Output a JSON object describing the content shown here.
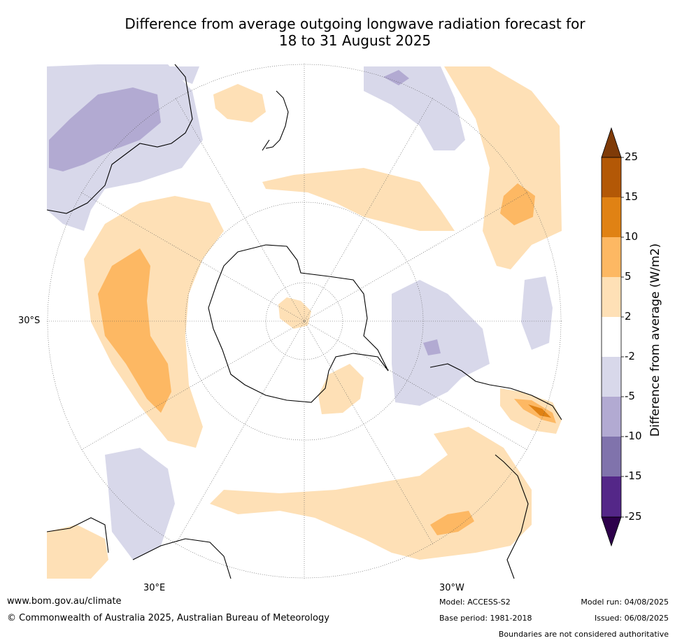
{
  "title": {
    "line1": "Difference from average outgoing longwave radiation forecast for",
    "line2": "18 to 31 August 2025"
  },
  "map": {
    "projection": "south-polar stereographic",
    "labels": {
      "lat_30s": "30°S",
      "lon_30e": "30°E",
      "lon_30w": "30°W"
    },
    "colors": {
      "lt_minus2_minus5": "#d8d8ea",
      "lt_minus5_minus10": "#b2aad2",
      "lt_minus10_minus15": "#8073ac",
      "lt_minus15_minus25": "#542788",
      "lt_minus25": "#2d004b",
      "gt_2_5": "#fee0b6",
      "gt_5_10": "#fdb863",
      "gt_10_15": "#e08214",
      "gt_15_25": "#b35806",
      "gt_25": "#7f3b08",
      "neutral": "#ffffff"
    }
  },
  "colorbar": {
    "title": "Difference from average (W/m2)",
    "ticks": [
      "25",
      "15",
      "10",
      "5",
      "2",
      "-2",
      "-5",
      "-10",
      "-15",
      "-25"
    ]
  },
  "footer": {
    "website": "www.bom.gov.au/climate",
    "copyright": "© Commonwealth of Australia 2025, Australian Bureau of Meteorology",
    "model": "Model: ACCESS-S2",
    "base_period": "Base period: 1981-2018",
    "model_run": "Model run: 04/08/2025",
    "issued": "Issued: 06/08/2025",
    "disclaimer": "Boundaries are not considered authoritative"
  }
}
